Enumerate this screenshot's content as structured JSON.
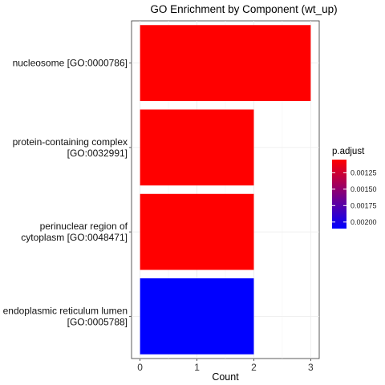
{
  "chart_data": {
    "type": "bar",
    "orientation": "horizontal",
    "title": "GO Enrichment by Component (wt_up)",
    "xlabel": "Count",
    "ylabel": "",
    "xlim": [
      -0.15,
      3.15
    ],
    "xticks": [
      0,
      1,
      2,
      3
    ],
    "grid": true,
    "legend_position": "right",
    "categories": [
      [
        "nucleosome [GO:0000786]"
      ],
      [
        "protein-containing complex",
        "[GO:0032991]"
      ],
      [
        "perinuclear region of",
        "cytoplasm [GO:0048471]"
      ],
      [
        "endoplasmic reticulum lumen",
        "[GO:0005788]"
      ]
    ],
    "values": [
      3,
      2,
      2,
      2
    ],
    "p_adjust": [
      0.00105,
      0.00105,
      0.00105,
      0.0021
    ],
    "colors": [
      "#FF0000",
      "#FF0000",
      "#FF0000",
      "#0000FF"
    ],
    "legend": {
      "title": "p.adjust",
      "color_low": "#FF0000",
      "color_high": "#0000FF",
      "range": [
        0.00105,
        0.0021
      ],
      "ticks": [
        "0.00125",
        "0.00150",
        "0.00175",
        "0.00200"
      ],
      "tick_values": [
        0.00125,
        0.0015,
        0.00175,
        0.002
      ]
    }
  }
}
